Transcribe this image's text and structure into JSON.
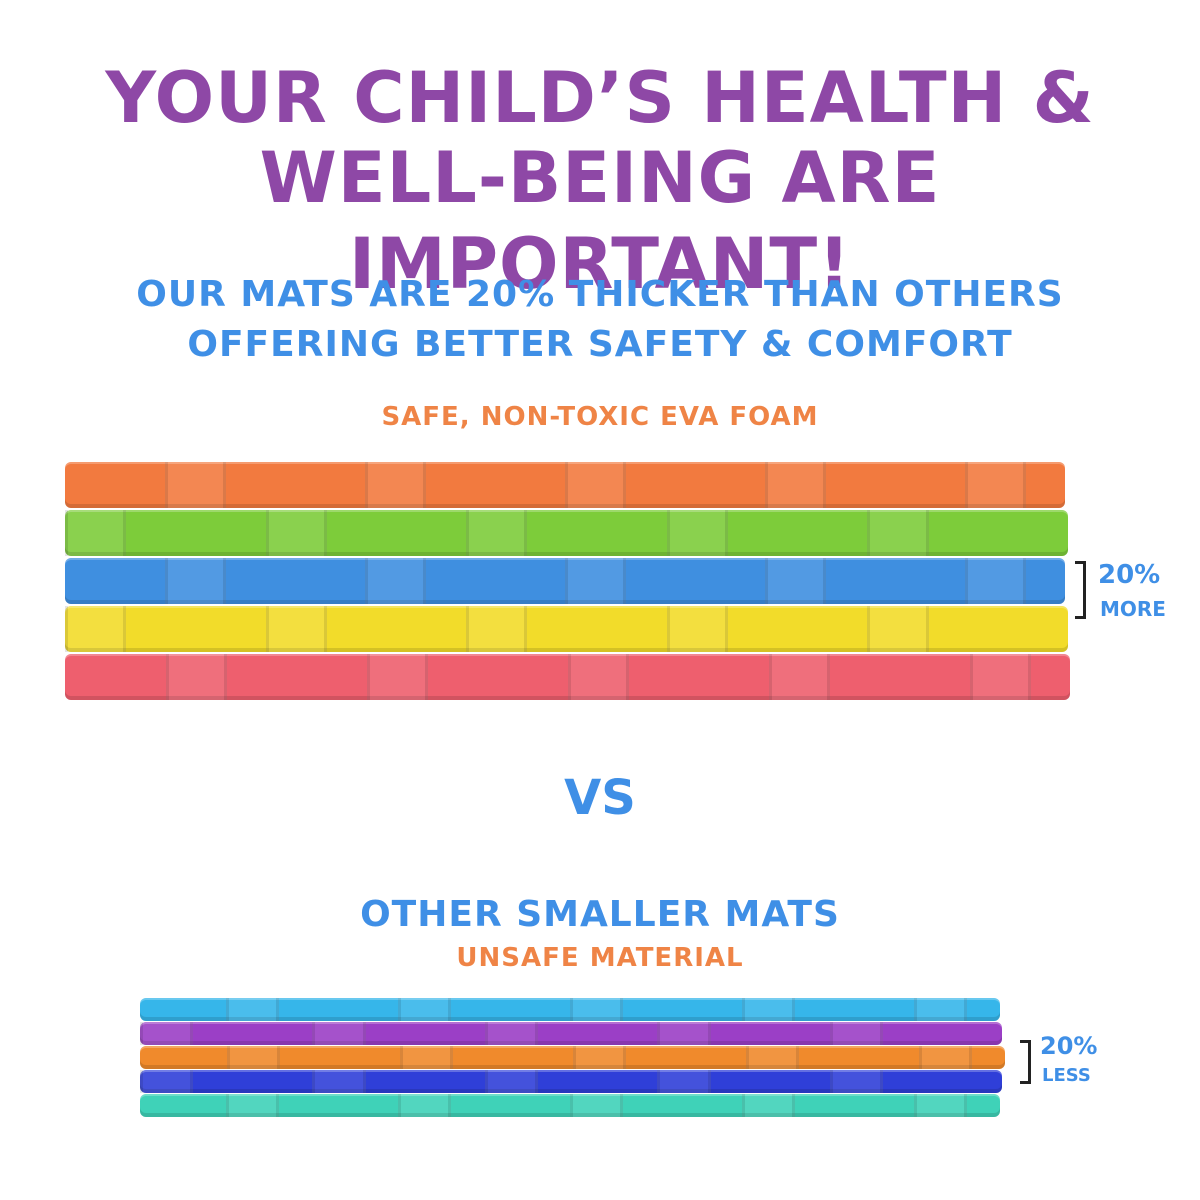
{
  "headline": {
    "line1": "YOUR CHILD’S HEALTH &",
    "line2": "WELL-BEING ARE IMPORTANT!"
  },
  "subheadline": {
    "line1": "OUR MATS ARE 20% THICKER THAN OTHERS",
    "line2": "OFFERING BETTER SAFETY & COMFORT"
  },
  "our_mats": {
    "material_label": "SAFE, NON-TOXIC EVA FOAM",
    "thickness_percent": "20%",
    "thickness_word": "MORE",
    "layer_colors": [
      "#f27a3f",
      "#7dcc3a",
      "#3f8fe0",
      "#f2dc2a",
      "#ee5f6e"
    ]
  },
  "vs_label": "VS",
  "other_mats": {
    "title": "OTHER SMALLER MATS",
    "material_label": "UNSAFE MATERIAL",
    "thickness_percent": "20%",
    "thickness_word": "LESS",
    "layer_colors": [
      "#36b6ea",
      "#9b3fc6",
      "#f08a2c",
      "#2f3fd8",
      "#3fd2b8"
    ]
  }
}
